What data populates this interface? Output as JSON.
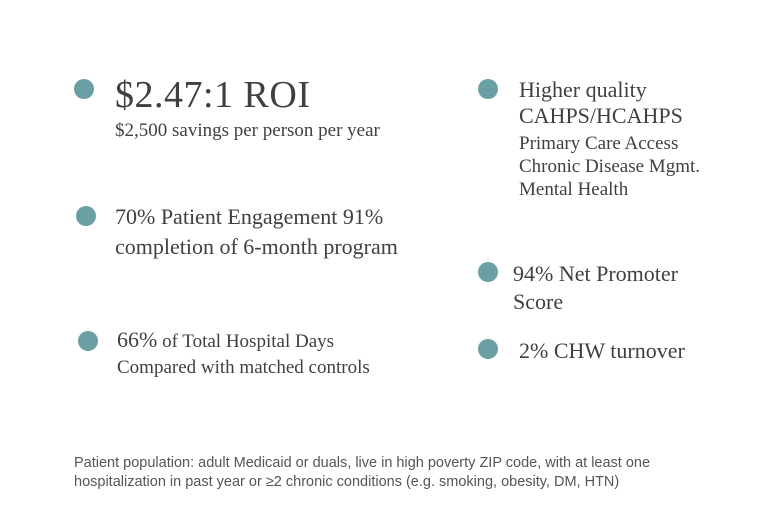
{
  "accent_color": "#6a9fa3",
  "roi": {
    "title": "$2.47:1  ROI",
    "subtitle": "$2,500 savings per person per year"
  },
  "quality": {
    "title_line1": "Higher quality",
    "title_line2": "CAHPS/HCAHPS",
    "items": [
      "Primary Care Access",
      "Chronic Disease Mgmt.",
      "Mental Health"
    ]
  },
  "engagement": {
    "line1": "70% Patient Engagement  91%",
    "line2": "completion of 6-month program"
  },
  "nps": {
    "line1": "94% Net Promoter",
    "line2": "Score"
  },
  "hospital": {
    "percent": "66%",
    "line1_rest": " of Total Hospital Days",
    "line2": "Compared with matched controls"
  },
  "turnover": {
    "text": "2% CHW turnover"
  },
  "footnote": "Patient population: adult Medicaid or duals, live in high poverty ZIP code, with at least one hospitalization in past year or ≥2 chronic conditions (e.g. smoking, obesity, DM, HTN)"
}
